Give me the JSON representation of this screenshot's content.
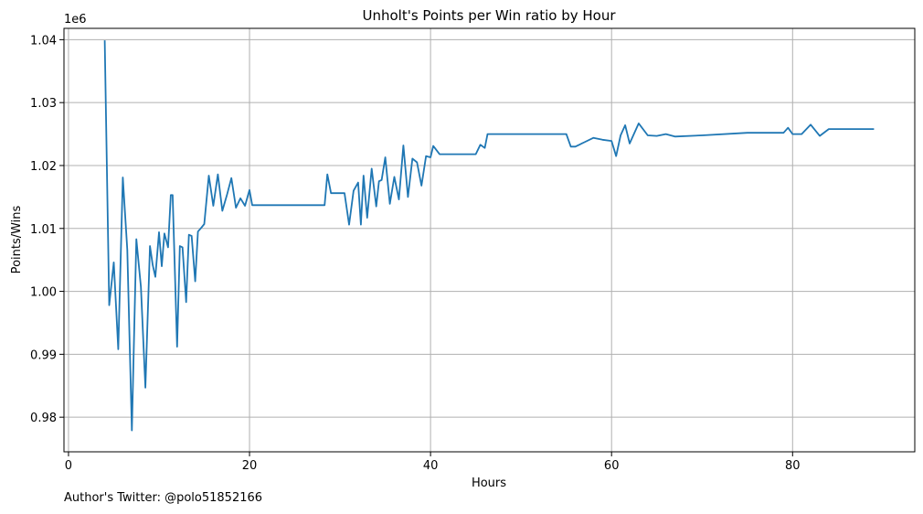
{
  "chart_data": {
    "type": "line",
    "title": "Unholt's Points per Win ratio by Hour",
    "xlabel": "Hours",
    "ylabel": "Points/Wins",
    "y_offset_label": "1e6",
    "xlim": [
      -0.5,
      93.5
    ],
    "ylim": [
      0.9745,
      1.0418
    ],
    "x_ticks": [
      0,
      20,
      40,
      60,
      80
    ],
    "x_tick_labels": [
      "0",
      "20",
      "40",
      "60",
      "80"
    ],
    "y_ticks": [
      0.98,
      0.99,
      1.0,
      1.01,
      1.02,
      1.03,
      1.04
    ],
    "y_tick_labels": [
      "0.98",
      "0.99",
      "1.00",
      "1.01",
      "1.02",
      "1.03",
      "1.04"
    ],
    "grid": true,
    "line_color": "#1f77b4",
    "series": [
      {
        "x": [
          4.0,
          4.5,
          5.0,
          5.5,
          6.0,
          6.5,
          7.0,
          7.5,
          8.0,
          8.5,
          9.0,
          9.3,
          9.6,
          10.0,
          10.3,
          10.6,
          11.0,
          11.3,
          11.5,
          12.0,
          12.3,
          12.6,
          13.0,
          13.3,
          13.6,
          14.0,
          14.3,
          14.6,
          15.0,
          15.5,
          16.0,
          16.5,
          17.0,
          17.5,
          18.0,
          18.5,
          19.0,
          19.5,
          20.0,
          20.3,
          28.3,
          28.6,
          29.0,
          30.5,
          31.0,
          31.5,
          32.0,
          32.3,
          32.6,
          33.0,
          33.5,
          34.0,
          34.3,
          34.6,
          35.0,
          35.5,
          36.0,
          36.5,
          37.0,
          37.5,
          38.0,
          38.5,
          39.0,
          39.5,
          40.0,
          40.3,
          41.0,
          45.0,
          45.5,
          46.0,
          46.3,
          55.0,
          55.5,
          56.0,
          57.0,
          58.0,
          59.0,
          60.0,
          60.5,
          61.0,
          61.5,
          62.0,
          63.0,
          64.0,
          65.0,
          66.0,
          67.0,
          70.0,
          75.0,
          79.0,
          79.5,
          80.0,
          81.0,
          82.0,
          83.0,
          84.0,
          85.0,
          89.0
        ],
        "y": [
          1.0399,
          0.9978,
          1.0046,
          0.9908,
          1.0181,
          1.0066,
          0.9779,
          1.0083,
          1.0007,
          0.9847,
          1.0072,
          1.0042,
          1.0023,
          1.0094,
          1.004,
          1.0092,
          1.007,
          1.0153,
          1.0153,
          0.9912,
          1.0072,
          1.007,
          0.9983,
          1.009,
          1.0088,
          1.0016,
          1.0095,
          1.01,
          1.0107,
          1.0184,
          1.0136,
          1.0186,
          1.0128,
          1.0153,
          1.018,
          1.0133,
          1.0148,
          1.0136,
          1.0161,
          1.0137,
          1.0137,
          1.0186,
          1.0156,
          1.0156,
          1.0106,
          1.016,
          1.0173,
          1.0106,
          1.0184,
          1.0117,
          1.0195,
          1.0135,
          1.0175,
          1.0177,
          1.0213,
          1.0139,
          1.0182,
          1.0146,
          1.0232,
          1.015,
          1.0211,
          1.0205,
          1.0168,
          1.0215,
          1.0213,
          1.0231,
          1.0218,
          1.0218,
          1.0233,
          1.0228,
          1.025,
          1.025,
          1.023,
          1.023,
          1.0237,
          1.0244,
          1.0241,
          1.0239,
          1.0215,
          1.0248,
          1.0264,
          1.0235,
          1.0267,
          1.0248,
          1.0247,
          1.025,
          1.0246,
          1.0248,
          1.0252,
          1.0252,
          1.026,
          1.025,
          1.025,
          1.0265,
          1.0247,
          1.0258,
          1.0258,
          1.0258
        ]
      }
    ]
  },
  "footnote": "Author's Twitter: @polo51852166"
}
